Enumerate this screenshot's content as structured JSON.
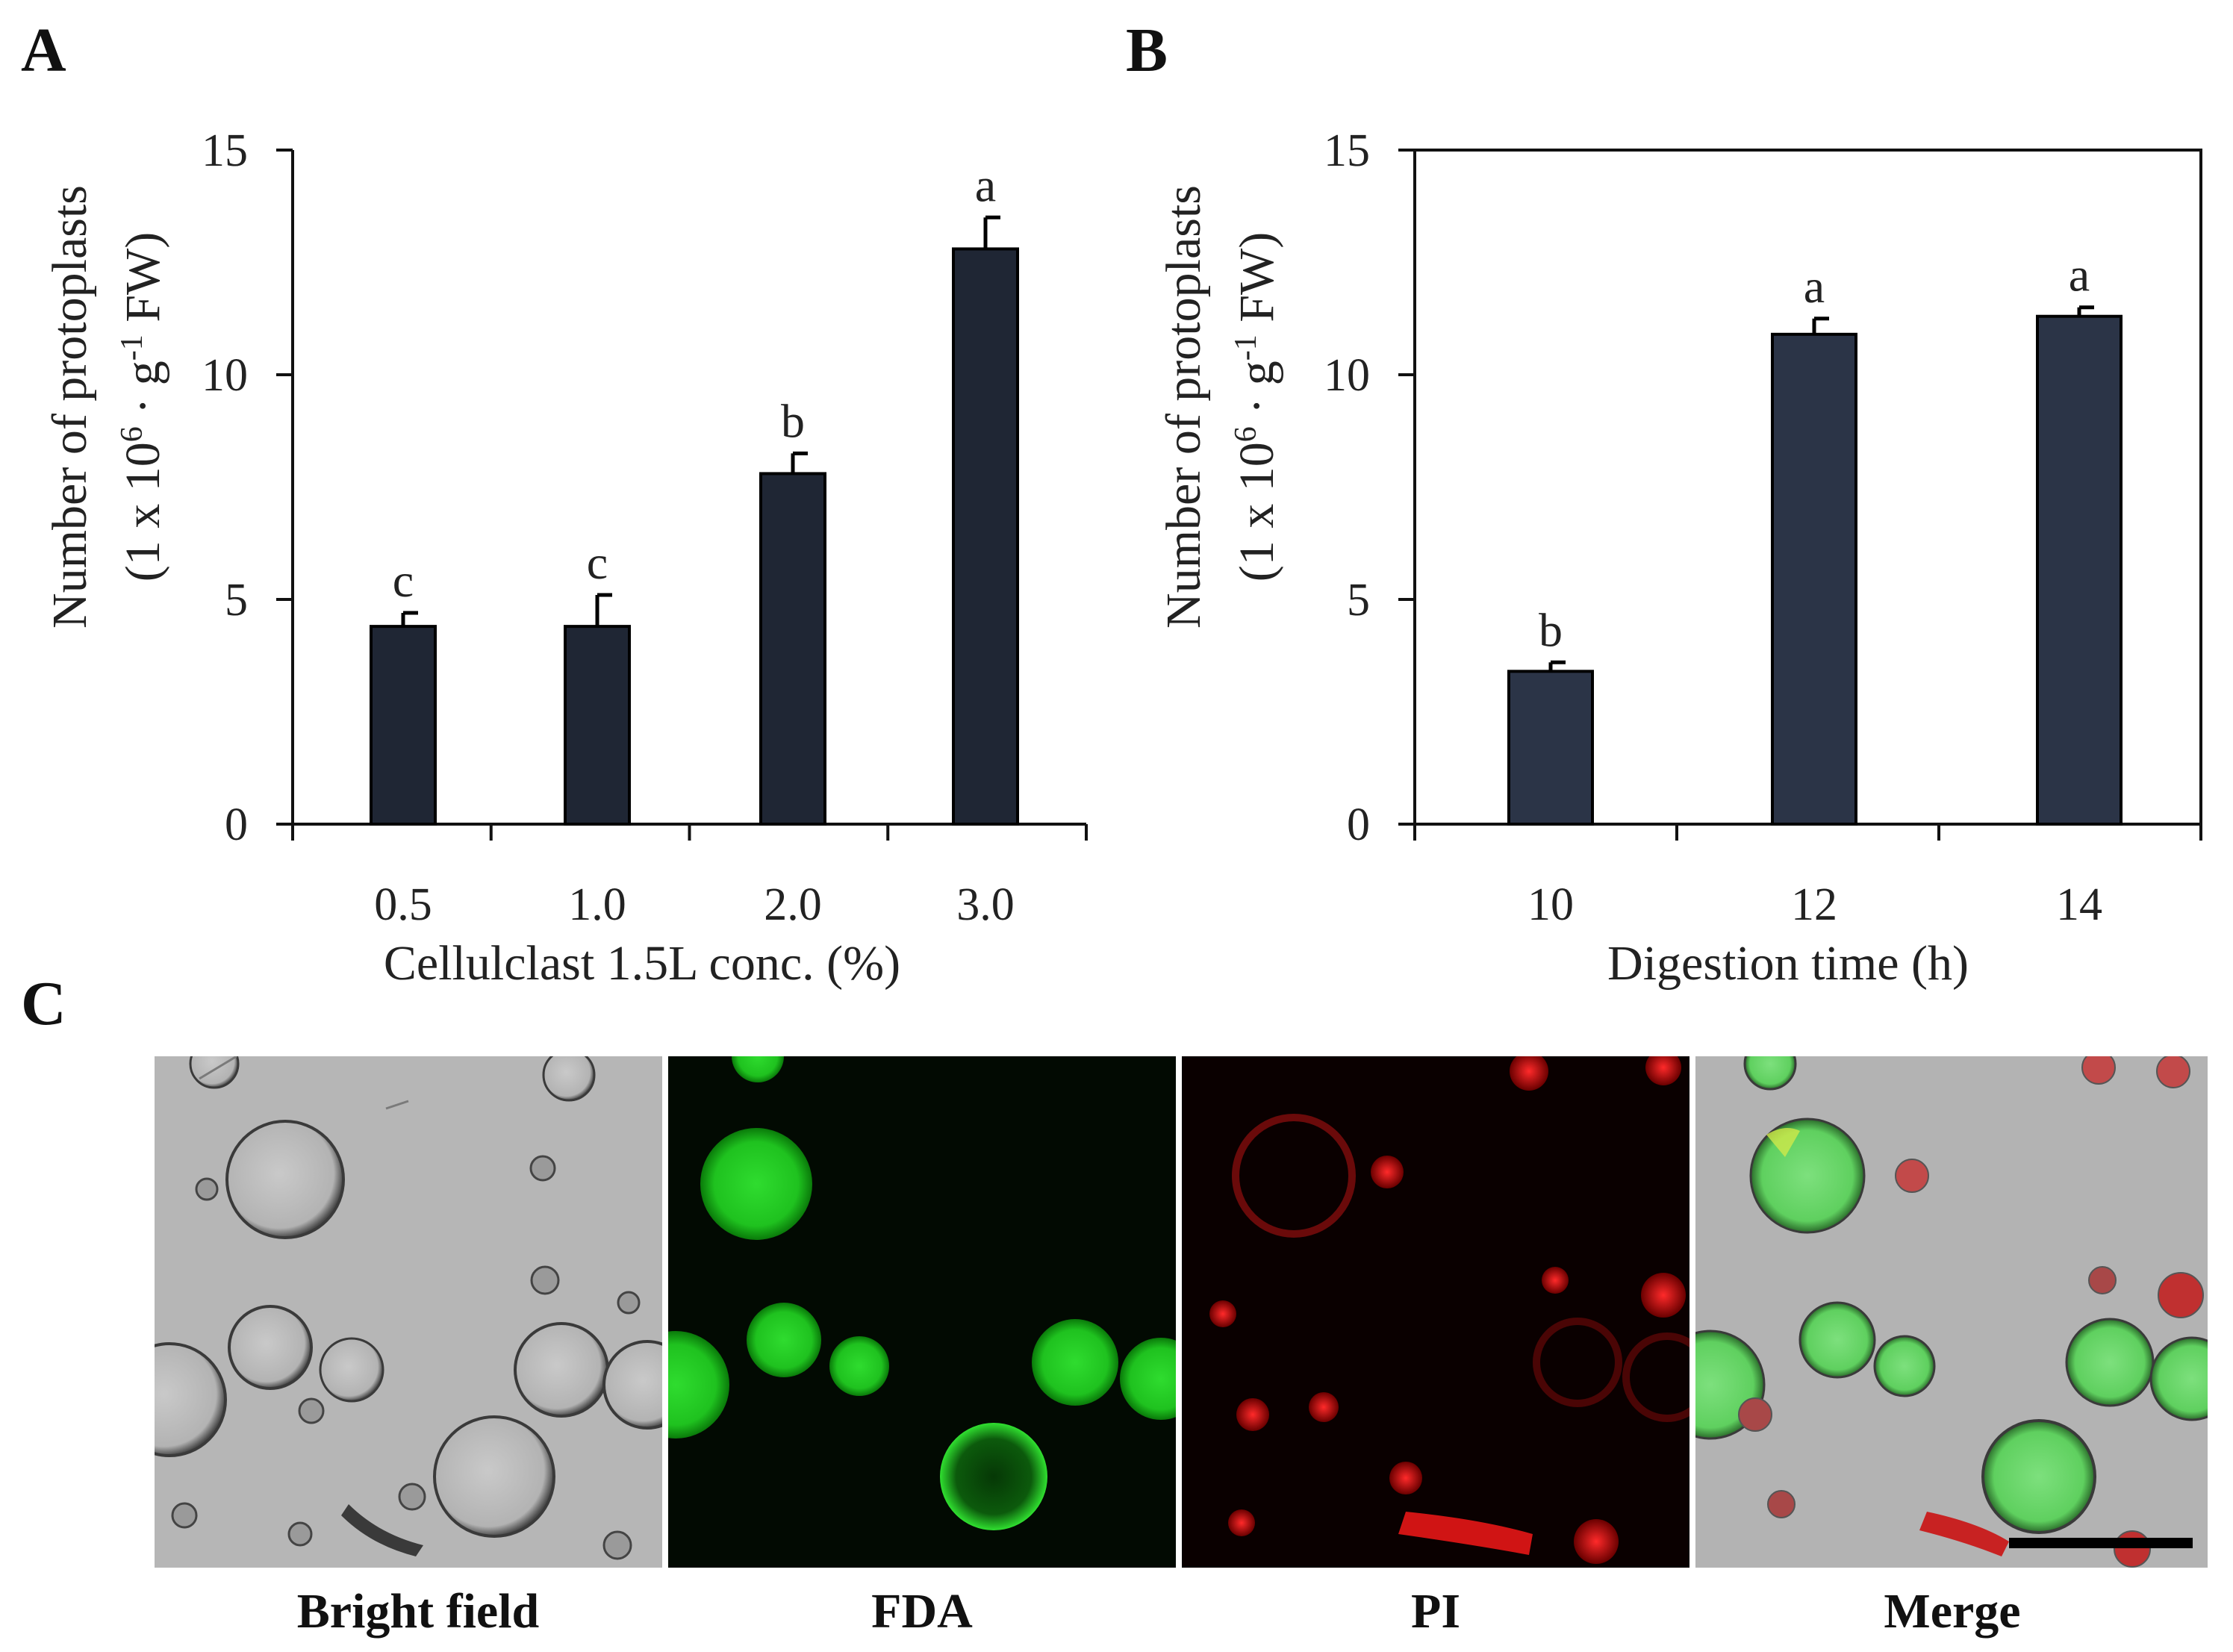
{
  "panel_labels": {
    "a": "A",
    "b": "B",
    "c": "C"
  },
  "chart_data": [
    {
      "type": "bar",
      "panel": "A",
      "categories": [
        "0.5",
        "1.0",
        "2.0",
        "3.0"
      ],
      "values": [
        4.4,
        4.4,
        7.8,
        12.8
      ],
      "errors": [
        0.3,
        0.7,
        0.45,
        0.7
      ],
      "significance": [
        "c",
        "c",
        "b",
        "a"
      ],
      "ylabel_line1": "Number of protoplasts",
      "ylabel_line2_pre": "(1 x 10",
      "ylabel_exp1": "6",
      "ylabel_mid": " · g",
      "ylabel_exp2": "-1",
      "ylabel_post": " FW)",
      "xlabel": "Cellulclast  1.5L conc. (%)",
      "ylim": [
        0,
        15
      ],
      "yticks": [
        "0",
        "5",
        "10",
        "15"
      ],
      "bar_color": "#1f2634"
    },
    {
      "type": "bar",
      "panel": "B",
      "categories": [
        "10",
        "12",
        "14"
      ],
      "values": [
        3.4,
        10.9,
        11.3
      ],
      "errors": [
        0.2,
        0.35,
        0.2
      ],
      "significance": [
        "b",
        "a",
        "a"
      ],
      "ylabel_line1": "Number of protoplasts",
      "ylabel_line2_pre": "(1 x 10",
      "ylabel_exp1": "6",
      "ylabel_mid": " · g",
      "ylabel_exp2": "-1",
      "ylabel_post": " FW)",
      "xlabel": "Digestion time (h)",
      "ylim": [
        0,
        15
      ],
      "yticks": [
        "0",
        "5",
        "10",
        "15"
      ],
      "bar_color": "#2b3447"
    }
  ],
  "micrographs": [
    {
      "caption": "Bright field",
      "kind": "brightfield"
    },
    {
      "caption": "FDA",
      "kind": "fda"
    },
    {
      "caption": "PI",
      "kind": "pi"
    },
    {
      "caption": "Merge",
      "kind": "merge"
    }
  ]
}
